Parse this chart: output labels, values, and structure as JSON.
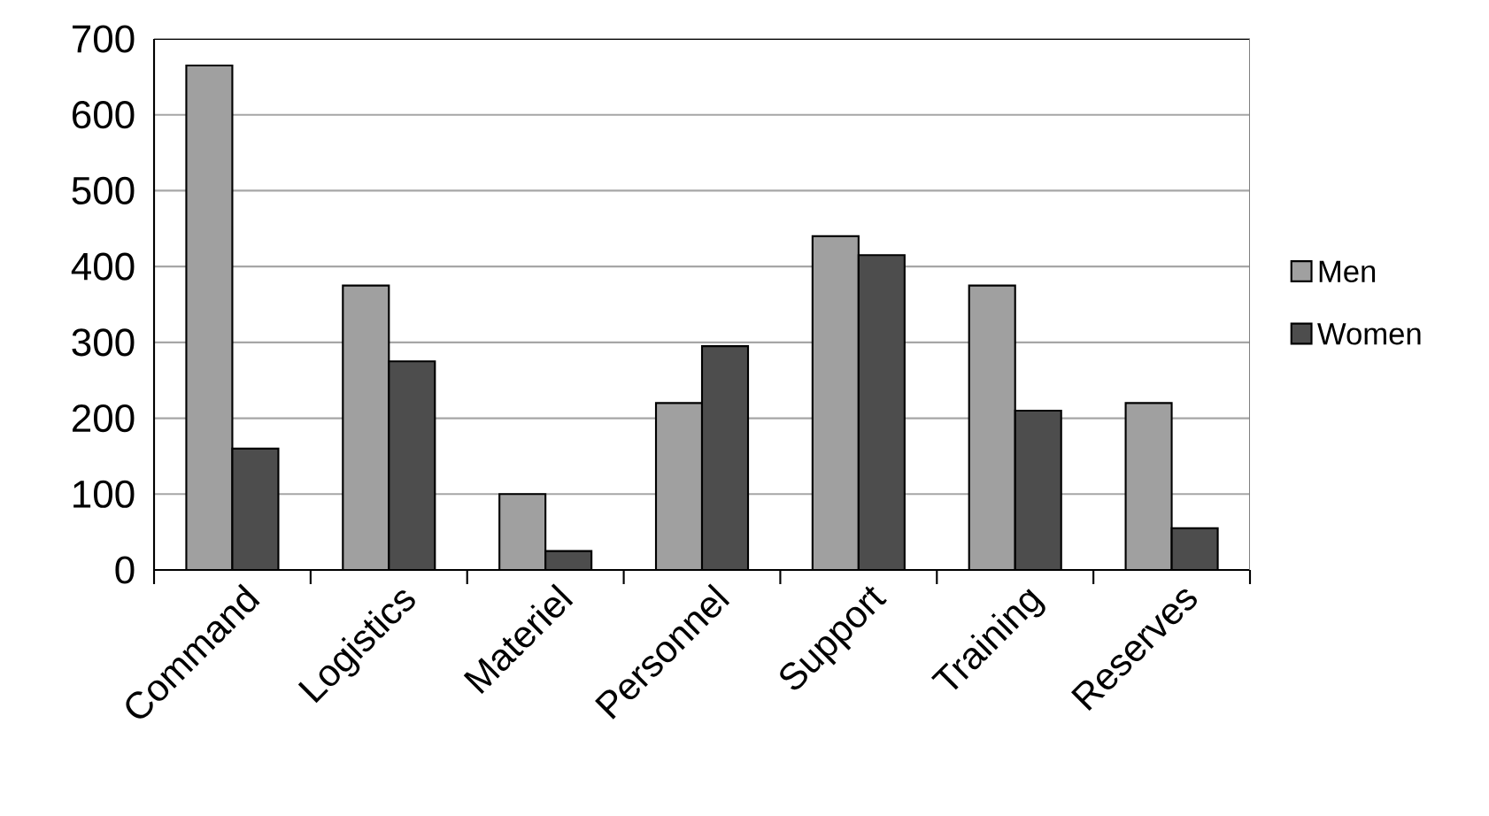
{
  "chart_data": {
    "type": "bar",
    "categories": [
      "Command",
      "Logistics",
      "Materiel",
      "Personnel",
      "Support",
      "Training",
      "Reserves"
    ],
    "series": [
      {
        "name": "Men",
        "color": "#a0a0a0",
        "values": [
          665,
          375,
          100,
          220,
          440,
          375,
          220
        ]
      },
      {
        "name": "Women",
        "color": "#4d4d4d",
        "values": [
          160,
          275,
          25,
          295,
          415,
          210,
          55
        ]
      }
    ],
    "ylim": [
      0,
      700
    ],
    "yticks": [
      0,
      100,
      200,
      300,
      400,
      500,
      600,
      700
    ],
    "grid": "y",
    "legend": "right"
  }
}
